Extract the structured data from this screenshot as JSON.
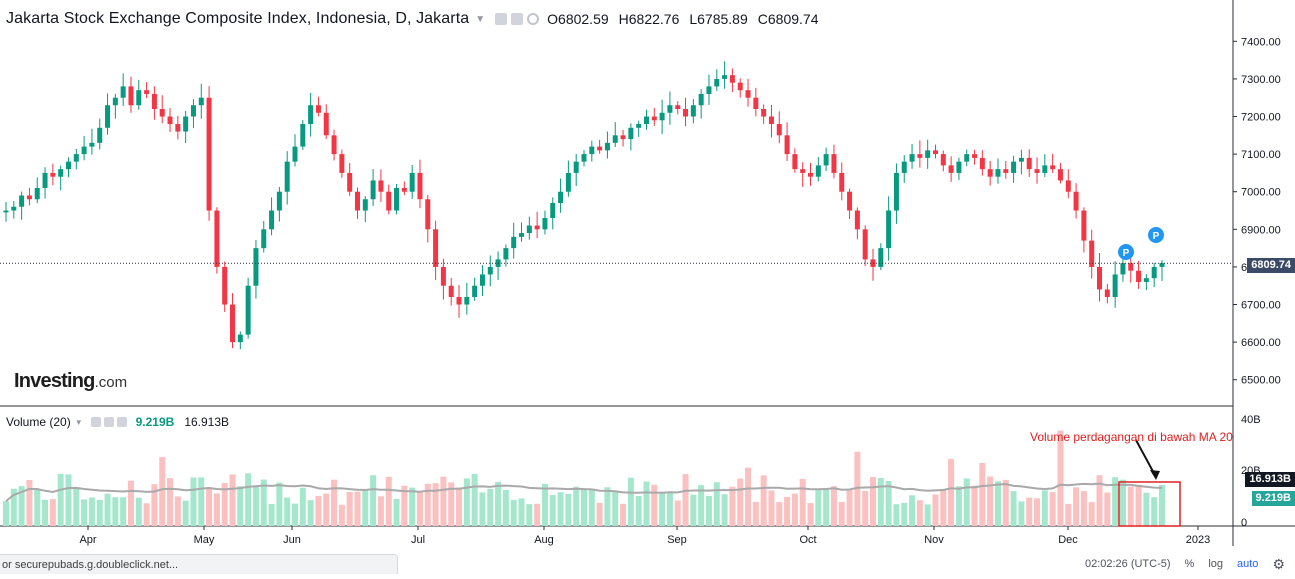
{
  "header": {
    "title": "Jakarta Stock Exchange Composite Index, Indonesia, D, Jakarta",
    "open": "O6802.59",
    "high": "H6822.76",
    "low": "L6785.89",
    "close": "C6809.74"
  },
  "volume_header": {
    "label": "Volume (20)",
    "current": "9.219B",
    "ma": "16.913B"
  },
  "logo": {
    "main": "Investing",
    "suffix": ".com"
  },
  "annotation": "Volume perdagangan di bawah MA 20",
  "last_price_tag": "6809.74",
  "volume_tags": {
    "ma": "16.913B",
    "current": "9.219B"
  },
  "bottom_bar": {
    "time": "02:02:26 (UTC-5)",
    "percent": "%",
    "log": "log",
    "auto": "auto"
  },
  "status_bar": "or securepubads.g.doubleclick.net...",
  "colors": {
    "up": "#089981",
    "down": "#f23645",
    "volume_up": "#a5e7cc",
    "volume_down": "#fbc0c0",
    "ma": "#a9a9a9",
    "price_line": "#2a2e39"
  },
  "chart_data": [
    {
      "type": "candlestick",
      "title": "Jakarta Stock Exchange Composite Index, Indonesia, D, Jakarta",
      "x_tick_labels": [
        "Apr",
        "May",
        "Jun",
        "Jul",
        "Aug",
        "Sep",
        "Oct",
        "Nov",
        "Dec",
        "2023"
      ],
      "y_tick_labels": [
        "7400.00",
        "7300.00",
        "7200.00",
        "7100.00",
        "7000.00",
        "6900.00",
        "6800.00",
        "6700.00",
        "6600.00",
        "6500.00"
      ],
      "ylim": [
        6470,
        7470
      ],
      "closes": [
        6950,
        6960,
        6990,
        6980,
        7010,
        7050,
        7040,
        7060,
        7080,
        7100,
        7120,
        7130,
        7170,
        7230,
        7250,
        7280,
        7230,
        7270,
        7260,
        7220,
        7200,
        7180,
        7160,
        7200,
        7230,
        7250,
        6950,
        6800,
        6700,
        6600,
        6620,
        6750,
        6850,
        6900,
        6950,
        7000,
        7080,
        7120,
        7180,
        7230,
        7210,
        7150,
        7100,
        7050,
        7000,
        6950,
        6980,
        7030,
        7000,
        6950,
        7010,
        7000,
        7050,
        6980,
        6900,
        6800,
        6750,
        6720,
        6700,
        6720,
        6750,
        6780,
        6800,
        6820,
        6850,
        6880,
        6890,
        6910,
        6900,
        6930,
        6970,
        7000,
        7050,
        7080,
        7100,
        7120,
        7110,
        7130,
        7150,
        7140,
        7170,
        7180,
        7200,
        7190,
        7210,
        7230,
        7220,
        7200,
        7230,
        7260,
        7280,
        7300,
        7310,
        7290,
        7270,
        7250,
        7220,
        7200,
        7180,
        7150,
        7100,
        7060,
        7050,
        7040,
        7070,
        7100,
        7050,
        7000,
        6950,
        6900,
        6820,
        6800,
        6850,
        6950,
        7050,
        7080,
        7100,
        7090,
        7110,
        7100,
        7070,
        7050,
        7080,
        7100,
        7090,
        7060,
        7040,
        7060,
        7050,
        7080,
        7090,
        7060,
        7050,
        7070,
        7060,
        7030,
        7000,
        6950,
        6870,
        6800,
        6740,
        6720,
        6780,
        6810,
        6790,
        6760,
        6770,
        6800,
        6810
      ],
      "series": [
        {
          "name": "Volume (20)",
          "last": "9.219B"
        },
        {
          "name": "MA 20",
          "last": "16.913B"
        }
      ],
      "volume_y_tick_labels": [
        "40B",
        "20B",
        "0"
      ],
      "annotation": "Volume perdagangan di bawah MA 20"
    }
  ]
}
